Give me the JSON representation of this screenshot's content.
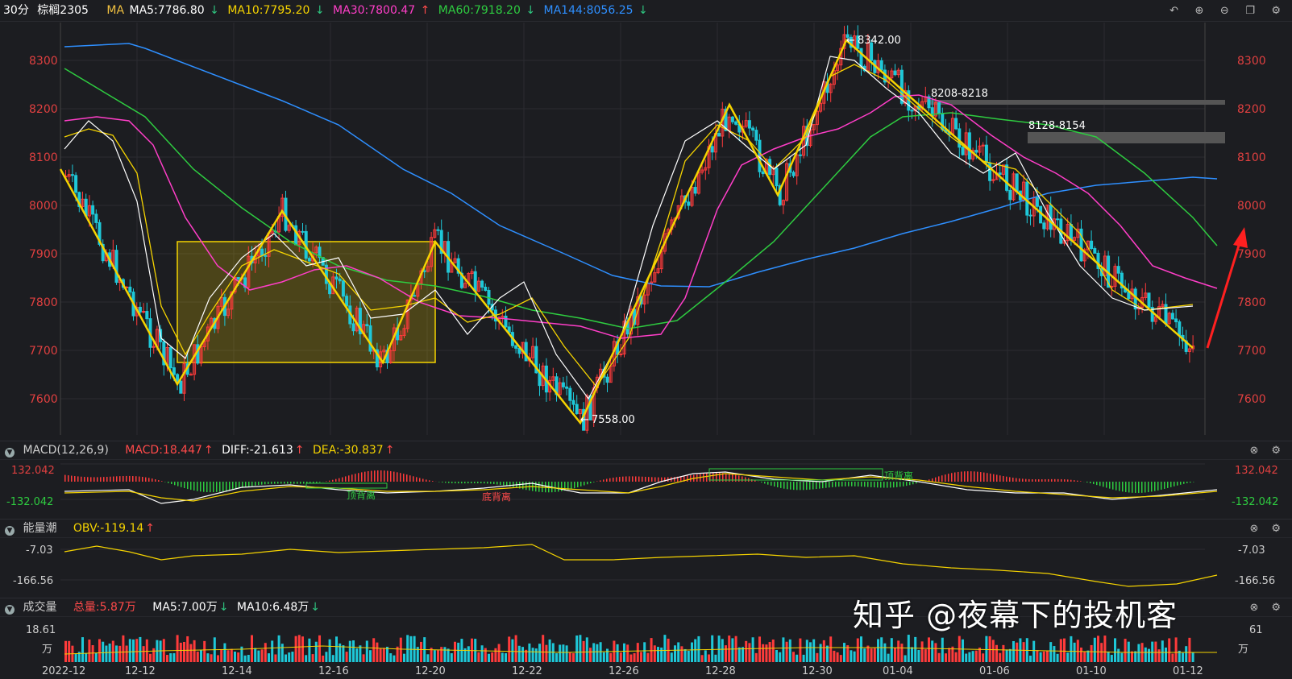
{
  "header": {
    "period": "30分",
    "symbol": "棕榈2305",
    "ma_label": "MA",
    "ma5": "MA5:7786.80",
    "ma10": "MA10:7795.20",
    "ma30": "MA30:7800.47",
    "ma60": "MA60:7918.20",
    "ma144": "MA144:8056.25",
    "arrows": {
      "ma5": "↓",
      "ma10": "↓",
      "ma30": "↑",
      "ma60": "↓",
      "ma144": "↓"
    },
    "colors": {
      "ma5": "#ffffff",
      "ma10": "#f5d300",
      "ma30": "#ff3ec8",
      "ma60": "#2ecc40",
      "ma144": "#2e8fff"
    }
  },
  "toolbar_icons": [
    "undo-icon",
    "zoom-in-icon",
    "zoom-out-icon",
    "window-icon",
    "settings-icon"
  ],
  "price_axis": {
    "ticks": [
      "8300",
      "8200",
      "8100",
      "8000",
      "7900",
      "7800",
      "7700",
      "7600"
    ],
    "min": 7520,
    "max": 8380
  },
  "date_axis": [
    "2022-12",
    "12-12",
    "12-14",
    "12-16",
    "12-20",
    "12-22",
    "12-26",
    "12-28",
    "12-30",
    "01-04",
    "01-06",
    "01-10",
    "01-12"
  ],
  "annotations": {
    "high": "8342.00",
    "low": "7558.00",
    "zone1": "8208-8218",
    "zone2": "8128-8154"
  },
  "macd": {
    "title": "MACD(12,26,9)",
    "macd": "MACD:18.447",
    "diff": "DIFF:-21.613",
    "dea": "DEA:-30.837",
    "upper": "132.042",
    "lower": "-132.042",
    "label_top_div1": "顶背离",
    "label_bottom_div": "底背离",
    "label_top_div2": "顶背离"
  },
  "obv": {
    "title": "能量潮",
    "value": "OBV:-119.14",
    "upper": "-7.03",
    "lower": "-166.56"
  },
  "volume": {
    "title": "成交量",
    "total": "总量:5.87万",
    "ma5": "MA5:7.00万",
    "ma10": "MA10:6.48万",
    "upper": "18.61",
    "unit": "万",
    "upper_right": "61"
  },
  "watermark": "知乎 @夜幕下的投机客",
  "chart_data": {
    "type": "candlestick",
    "title": "棕榈2305 30分",
    "x": [
      "2022-12",
      "12-12",
      "12-14",
      "12-16",
      "12-20",
      "12-22",
      "12-26",
      "12-28",
      "12-30",
      "01-04",
      "01-06",
      "01-10",
      "01-12"
    ],
    "ylim": [
      7520,
      8380
    ],
    "zigzag": [
      [
        0,
        8080
      ],
      [
        1,
        7630
      ],
      [
        2,
        7990
      ],
      [
        3,
        7680
      ],
      [
        4,
        7920
      ],
      [
        5,
        7558
      ],
      [
        6,
        8210
      ],
      [
        7,
        8030
      ],
      [
        8,
        8342
      ],
      [
        9,
        7710
      ]
    ],
    "ma144_path": [
      8330,
      8335,
      8200,
      8000,
      7870,
      7820,
      7880,
      7980,
      8030,
      8060
    ]
  }
}
